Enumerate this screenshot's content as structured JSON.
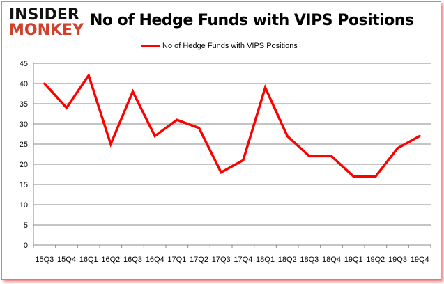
{
  "logo": {
    "line1": "INSIDER",
    "line2": "MONKEY"
  },
  "chart_data": {
    "type": "line",
    "title": "No of Hedge Funds with VIPS Positions",
    "categories": [
      "15Q3",
      "15Q4",
      "16Q1",
      "16Q2",
      "16Q3",
      "16Q4",
      "17Q1",
      "17Q2",
      "17Q3",
      "17Q4",
      "18Q1",
      "18Q2",
      "18Q3",
      "18Q4",
      "19Q1",
      "19Q2",
      "19Q3",
      "19Q4"
    ],
    "series": [
      {
        "name": "No of Hedge Funds with VIPS Positions",
        "color": "#ff0000",
        "values": [
          40,
          34,
          42,
          25,
          38,
          27,
          31,
          29,
          18,
          21,
          39,
          27,
          22,
          22,
          17,
          17,
          24,
          27
        ]
      }
    ],
    "ylim": [
      0,
      45
    ],
    "yticks": [
      0,
      5,
      10,
      15,
      20,
      25,
      30,
      35,
      40,
      45
    ],
    "grid": true,
    "legend": "top-center"
  }
}
